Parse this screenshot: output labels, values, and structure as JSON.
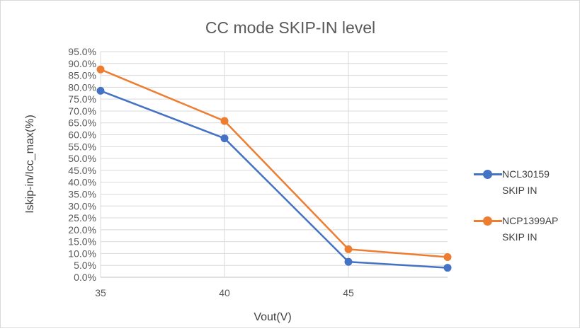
{
  "chart_data": {
    "type": "line",
    "title": "CC mode SKIP-IN level",
    "xlabel": "Vout(V)",
    "ylabel": "Iskip-in/Icc_max(%)",
    "x_ticks": [
      "35",
      "40",
      "45"
    ],
    "xlim": [
      35,
      49
    ],
    "ylim": [
      0,
      95
    ],
    "y_step": 5,
    "y_tick_labels": [
      "0.0%",
      "5.0%",
      "10.0%",
      "15.0%",
      "20.0%",
      "25.0%",
      "30.0%",
      "35.0%",
      "40.0%",
      "45.0%",
      "50.0%",
      "55.0%",
      "60.0%",
      "65.0%",
      "70.0%",
      "75.0%",
      "80.0%",
      "85.0%",
      "90.0%",
      "95.0%"
    ],
    "grid": true,
    "legend_position": "right",
    "series": [
      {
        "name": "NCL30159\nSKIP IN",
        "color": "#4472c4",
        "x": [
          35,
          40,
          45,
          49
        ],
        "values": [
          78.5,
          58.5,
          6.5,
          4.0
        ]
      },
      {
        "name": "NCP1399AP\nSKIP IN",
        "color": "#ed7d31",
        "x": [
          35,
          40,
          45,
          49
        ],
        "values": [
          87.5,
          65.8,
          11.8,
          8.5
        ]
      }
    ]
  }
}
